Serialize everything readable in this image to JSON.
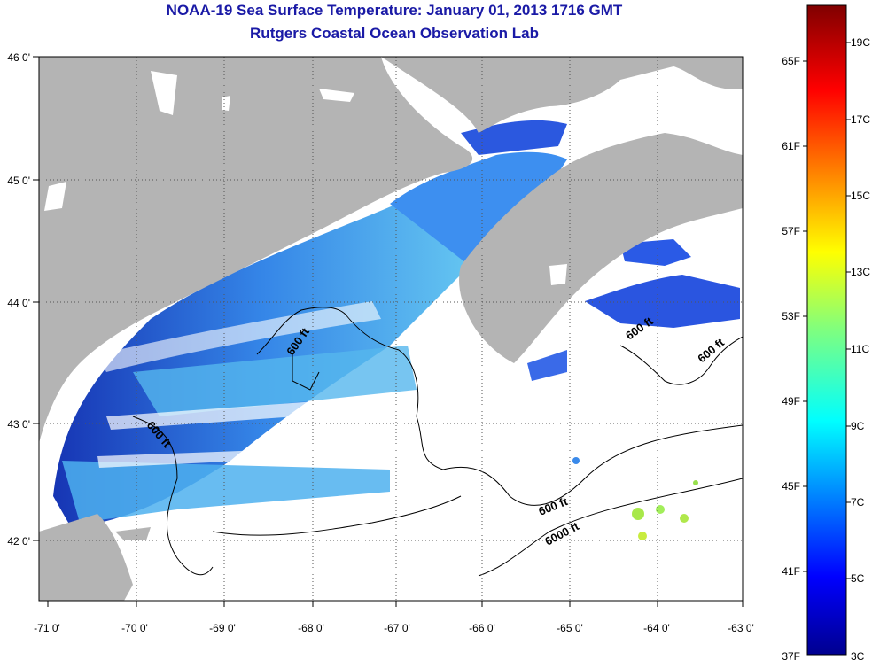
{
  "header": {
    "title": "NOAA-19 Sea Surface Temperature:  January 01, 2013 1716 GMT",
    "subtitle": "Rutgers Coastal Ocean Observation Lab"
  },
  "map": {
    "lon_labels": [
      "-71 0'",
      "-70 0'",
      "-69 0'",
      "-68 0'",
      "-67 0'",
      "-66 0'",
      "-65 0'",
      "-64 0'",
      "-63 0'"
    ],
    "lat_labels": [
      "46 0'",
      "45 0'",
      "44 0'",
      "43 0'",
      "42 0'"
    ],
    "contour_labels": [
      "600 ft",
      "600 ft",
      "600 ft",
      "600 ft",
      "600 ft",
      "6000 ft"
    ],
    "colors": {
      "land": "#b4b4b4",
      "ocean_nodata": "#ffffff",
      "cold": "#0a2aa8",
      "mid": "#36a6ee",
      "warm": "#a6ec4a"
    }
  },
  "colorbar": {
    "celsius": [
      "19C",
      "17C",
      "15C",
      "13C",
      "11C",
      "9C",
      "7C",
      "5C",
      "3C"
    ],
    "fahrenheit": [
      "65F",
      "61F",
      "57F",
      "53F",
      "49F",
      "45F",
      "41F",
      "37F"
    ],
    "range_c": [
      3,
      20
    ],
    "colormap": "jet"
  }
}
